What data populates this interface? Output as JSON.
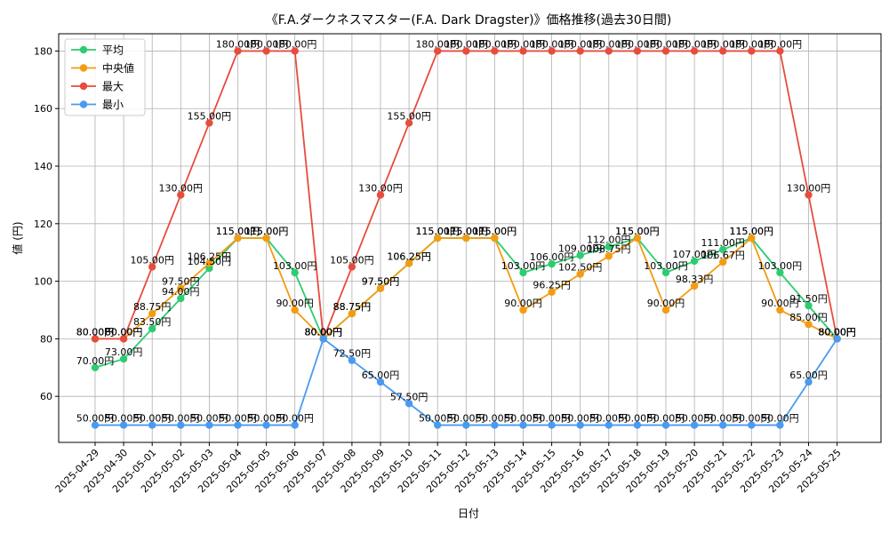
{
  "chart_data": {
    "type": "line",
    "title": "《F.A.ダークネスマスター(F.A. Dark Dragster)》価格推移(過去30日間)",
    "xlabel": "日付",
    "ylabel": "値 (円)",
    "ylim": [
      44,
      186
    ],
    "yticks": [
      60,
      80,
      100,
      120,
      140,
      160,
      180
    ],
    "grid": true,
    "legend_position": "top-left",
    "value_suffix": "円",
    "categories": [
      "2025-04-29",
      "2025-04-30",
      "2025-05-01",
      "2025-05-02",
      "2025-05-03",
      "2025-05-04",
      "2025-05-05",
      "2025-05-06",
      "2025-05-07",
      "2025-05-08",
      "2025-05-09",
      "2025-05-10",
      "2025-05-11",
      "2025-05-12",
      "2025-05-13",
      "2025-05-14",
      "2025-05-15",
      "2025-05-16",
      "2025-05-17",
      "2025-05-18",
      "2025-05-19",
      "2025-05-20",
      "2025-05-21",
      "2025-05-22",
      "2025-05-23",
      "2025-05-24",
      "2025-05-25"
    ],
    "series": [
      {
        "name": "平均",
        "color": "#2ecc71",
        "values": [
          70.0,
          73.0,
          83.5,
          94.0,
          104.5,
          115.0,
          115.0,
          103.0,
          80.0,
          88.75,
          97.5,
          106.25,
          115.0,
          115.0,
          115.0,
          103.0,
          106.0,
          109.0,
          112.0,
          115.0,
          103.0,
          107.0,
          111.0,
          115.0,
          103.0,
          91.5,
          80.0
        ]
      },
      {
        "name": "中央値",
        "color": "#f39c12",
        "values": [
          80.0,
          80.0,
          88.75,
          97.5,
          106.25,
          115.0,
          115.0,
          90.0,
          80.0,
          88.75,
          97.5,
          106.25,
          115.0,
          115.0,
          115.0,
          90.0,
          96.25,
          102.5,
          108.75,
          115.0,
          90.0,
          98.33,
          106.67,
          115.0,
          90.0,
          85.0,
          80.0
        ]
      },
      {
        "name": "最大",
        "color": "#e74c3c",
        "values": [
          80.0,
          80.0,
          105.0,
          130.0,
          155.0,
          180.0,
          180.0,
          180.0,
          80.0,
          105.0,
          130.0,
          155.0,
          180.0,
          180.0,
          180.0,
          180.0,
          180.0,
          180.0,
          180.0,
          180.0,
          180.0,
          180.0,
          180.0,
          180.0,
          180.0,
          130.0,
          80.0
        ]
      },
      {
        "name": "最小",
        "color": "#4a9af0",
        "values": [
          50.0,
          50.0,
          50.0,
          50.0,
          50.0,
          50.0,
          50.0,
          50.0,
          80.0,
          72.5,
          65.0,
          57.5,
          50.0,
          50.0,
          50.0,
          50.0,
          50.0,
          50.0,
          50.0,
          50.0,
          50.0,
          50.0,
          50.0,
          50.0,
          50.0,
          65.0,
          80.0
        ]
      }
    ]
  }
}
